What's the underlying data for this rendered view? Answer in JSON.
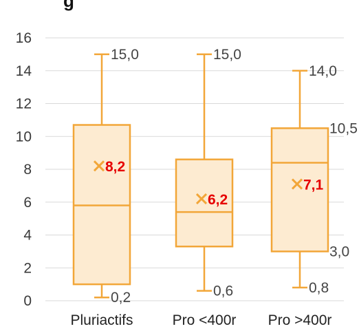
{
  "chart_data": {
    "type": "boxplot",
    "title": "",
    "title_fragment": "g",
    "xlabel": "",
    "ylabel": "",
    "ylim": [
      0,
      17
    ],
    "yticks": [
      0,
      2,
      4,
      6,
      8,
      10,
      12,
      14,
      16
    ],
    "ytick_labels": [
      "0",
      "2",
      "4",
      "6",
      "8",
      "10",
      "12",
      "14",
      "16"
    ],
    "grid": "horizontal",
    "colors": {
      "box_fill": "#fdebd1",
      "box_stroke": "#f2a638",
      "mean_marker": "#f2a638",
      "mean_label": "#e60000",
      "grid": "#d9d9d9"
    },
    "categories": [
      "Pluriactifs",
      "Pro <400r",
      "Pro >400r"
    ],
    "boxes": [
      {
        "category": "Pluriactifs",
        "min": 0.2,
        "q1": 1.0,
        "median": 5.8,
        "q3": 10.7,
        "max": 15.0,
        "mean": 8.2,
        "labels": {
          "max": "15,0",
          "min": "0,2",
          "mean": "8,2",
          "q3": "",
          "q1": ""
        }
      },
      {
        "category": "Pro <400r",
        "min": 0.6,
        "q1": 3.3,
        "median": 5.4,
        "q3": 8.6,
        "max": 15.0,
        "mean": 6.2,
        "labels": {
          "max": "15,0",
          "min": "0,6",
          "mean": "6,2",
          "q3": "",
          "q1": ""
        }
      },
      {
        "category": "Pro >400r",
        "min": 0.8,
        "q1": 3.0,
        "median": 8.4,
        "q3": 10.5,
        "max": 14.0,
        "mean": 7.1,
        "labels": {
          "max": "14,0",
          "min": "0,8",
          "mean": "7,1",
          "q3": "10,5",
          "q1": "3,0"
        }
      }
    ]
  }
}
